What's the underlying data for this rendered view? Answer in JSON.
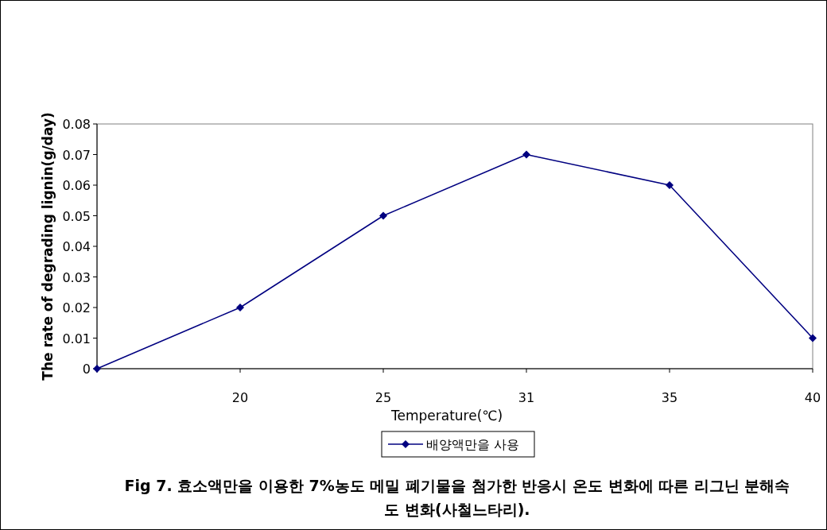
{
  "chart_data": {
    "type": "line",
    "xlabel": "Temperature(℃)",
    "ylabel": "The rate of degrading lignin(g/day)",
    "categories": [
      null,
      "20",
      "25",
      "31",
      "35",
      "40"
    ],
    "series": [
      {
        "name": "배양액만을 사용",
        "color": "#000080",
        "values": [
          0,
          0.02,
          0.05,
          0.07,
          0.06,
          0.01
        ]
      }
    ],
    "ylim": [
      0,
      0.08
    ],
    "yticks": [
      0,
      0.01,
      0.02,
      0.03,
      0.04,
      0.05,
      0.06,
      0.07,
      0.08
    ],
    "marker": "diamond",
    "line_style": "solid",
    "legend": "bottom",
    "annotations": [
      "Fig 7. 효소액만을 이용한 7%농도 메밀 폐기물을 첨가한 반응시 온도 변화에 따른 리그닌 분해속도 변화(사철느타리)."
    ]
  }
}
